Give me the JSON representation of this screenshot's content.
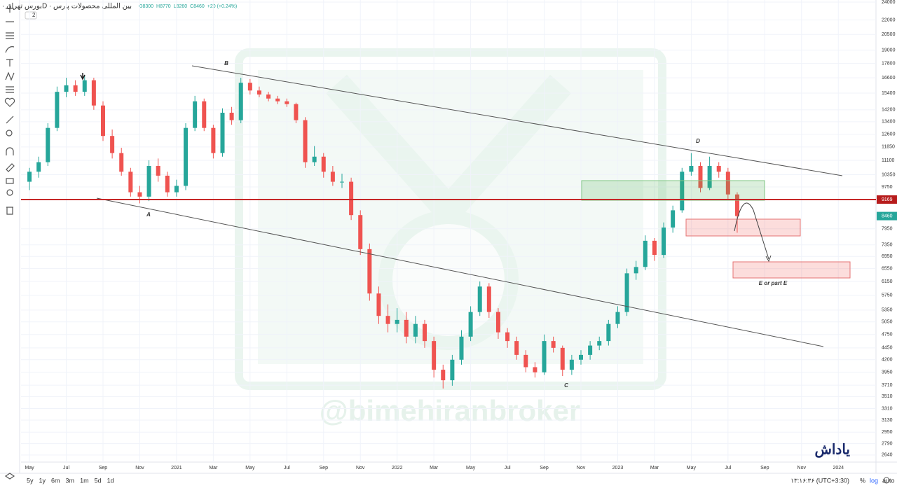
{
  "chart_data": {
    "type": "candlestick",
    "title": "بورس تهران · 1D · بین المللی محصولات پارس",
    "ohlc_texts": [
      "O8300",
      "H8770",
      "L8260",
      "C8460",
      "+20 (+0.24%)"
    ],
    "interval_badge": "2",
    "log_scale": true,
    "up_color": "#26a69a",
    "down_color": "#ef5350",
    "ylim": [
      2550,
      24250
    ],
    "yticks": [
      24000,
      22000,
      20500,
      19000,
      17800,
      16600,
      15400,
      14200,
      13400,
      12600,
      11850,
      11100,
      10350,
      9750,
      7950,
      7350,
      6950,
      6550,
      6150,
      5750,
      5350,
      5050,
      4750,
      4450,
      4200,
      3950,
      3710,
      3510,
      3310,
      3130,
      2950,
      2790,
      2640
    ],
    "xlim": [
      3.54,
      50.05
    ],
    "xticks": [
      {
        "value": 4,
        "label": "May"
      },
      {
        "value": 6,
        "label": "Jul"
      },
      {
        "value": 8,
        "label": "Sep"
      },
      {
        "value": 10,
        "label": "Nov"
      },
      {
        "value": 12,
        "label": "2021"
      },
      {
        "value": 14,
        "label": "Mar"
      },
      {
        "value": 16,
        "label": "May"
      },
      {
        "value": 18,
        "label": "Jul"
      },
      {
        "value": 20,
        "label": "Sep"
      },
      {
        "value": 22,
        "label": "Nov"
      },
      {
        "value": 24,
        "label": "2022"
      },
      {
        "value": 26,
        "label": "Mar"
      },
      {
        "value": 28,
        "label": "May"
      },
      {
        "value": 30,
        "label": "Jul"
      },
      {
        "value": 32,
        "label": "Sep"
      },
      {
        "value": 34,
        "label": "Nov"
      },
      {
        "value": 36,
        "label": "2023"
      },
      {
        "value": 38,
        "label": "Mar"
      },
      {
        "value": 40,
        "label": "May"
      },
      {
        "value": 42,
        "label": "Jul"
      },
      {
        "value": 44,
        "label": "Sep"
      },
      {
        "value": 46,
        "label": "Nov"
      },
      {
        "value": 48,
        "label": "2024"
      }
    ],
    "candles": [
      [
        4,
        10000,
        10700,
        9600,
        10500
      ],
      [
        4.5,
        10500,
        11300,
        10200,
        11000
      ],
      [
        5,
        11000,
        13300,
        10800,
        13000
      ],
      [
        5.5,
        13000,
        15900,
        12800,
        15500
      ],
      [
        6,
        15500,
        16600,
        15100,
        16000
      ],
      [
        6.5,
        16000,
        16400,
        15200,
        15500
      ],
      [
        7,
        15500,
        16800,
        15200,
        16400
      ],
      [
        7.5,
        16400,
        16600,
        14200,
        14500
      ],
      [
        8,
        14500,
        14800,
        12200,
        12500
      ],
      [
        8.5,
        12500,
        12900,
        11200,
        11500
      ],
      [
        9,
        11500,
        11800,
        10300,
        10500
      ],
      [
        9.5,
        10500,
        10700,
        9300,
        9500
      ],
      [
        10,
        9500,
        9800,
        9000,
        9300
      ],
      [
        10.5,
        9300,
        11100,
        9100,
        10800
      ],
      [
        11,
        10800,
        11200,
        10000,
        10300
      ],
      [
        11.5,
        10300,
        10500,
        9300,
        9500
      ],
      [
        12,
        9500,
        10100,
        9300,
        9800
      ],
      [
        12.5,
        9800,
        13300,
        9600,
        13000
      ],
      [
        13,
        13000,
        15200,
        12800,
        14800
      ],
      [
        13.5,
        14800,
        15000,
        12800,
        13000
      ],
      [
        14,
        13000,
        13200,
        11200,
        11500
      ],
      [
        14.5,
        11500,
        14300,
        11300,
        14000
      ],
      [
        15,
        14000,
        14400,
        13200,
        13500
      ],
      [
        15.5,
        13500,
        16600,
        13300,
        16200
      ],
      [
        16,
        16200,
        16500,
        15300,
        15600
      ],
      [
        16.5,
        15600,
        15900,
        15100,
        15300
      ],
      [
        17,
        15300,
        15500,
        14800,
        15000
      ],
      [
        17.5,
        15000,
        15200,
        14600,
        14800
      ],
      [
        18,
        14800,
        15000,
        14400,
        14600
      ],
      [
        18.5,
        14600,
        14700,
        13300,
        13500
      ],
      [
        19,
        13500,
        13700,
        10700,
        11000
      ],
      [
        19.5,
        11000,
        11900,
        10800,
        11300
      ],
      [
        20,
        11300,
        11500,
        10200,
        10500
      ],
      [
        20.5,
        10500,
        10800,
        9800,
        10000
      ],
      [
        21,
        10000,
        10400,
        9700,
        10000
      ],
      [
        21.5,
        10000,
        10200,
        8300,
        8500
      ],
      [
        22,
        8500,
        8700,
        7000,
        7200
      ],
      [
        22.5,
        7200,
        7400,
        5600,
        5800
      ],
      [
        23,
        5800,
        6000,
        5000,
        5200
      ],
      [
        23.5,
        5200,
        5500,
        4800,
        5000
      ],
      [
        24,
        5000,
        5400,
        4800,
        5100
      ],
      [
        24.5,
        5100,
        5300,
        4550,
        4700
      ],
      [
        25,
        4700,
        5200,
        4550,
        5000
      ],
      [
        25.5,
        5000,
        5100,
        4450,
        4600
      ],
      [
        26,
        4600,
        4700,
        3850,
        4000
      ],
      [
        26.5,
        4000,
        4100,
        3650,
        3800
      ],
      [
        27,
        3800,
        4300,
        3700,
        4200
      ],
      [
        27.5,
        4200,
        4850,
        4100,
        4700
      ],
      [
        28,
        4700,
        5450,
        4600,
        5300
      ],
      [
        28.5,
        5300,
        6150,
        5200,
        6000
      ],
      [
        29,
        6000,
        6100,
        5150,
        5300
      ],
      [
        29.5,
        5300,
        5400,
        4650,
        4800
      ],
      [
        30,
        4800,
        4900,
        4450,
        4600
      ],
      [
        30.5,
        4600,
        4700,
        4200,
        4300
      ],
      [
        31,
        4300,
        4400,
        3950,
        4050
      ],
      [
        31.5,
        4050,
        4150,
        3850,
        3950
      ],
      [
        32,
        3950,
        4750,
        3900,
        4600
      ],
      [
        32.5,
        4600,
        4700,
        4350,
        4450
      ],
      [
        33,
        4450,
        4500,
        3880,
        4000
      ],
      [
        33.5,
        4000,
        4300,
        3900,
        4200
      ],
      [
        34,
        4200,
        4400,
        4100,
        4300
      ],
      [
        34.5,
        4300,
        4600,
        4200,
        4500
      ],
      [
        35,
        4500,
        4700,
        4400,
        4600
      ],
      [
        35.5,
        4600,
        5100,
        4500,
        5000
      ],
      [
        36,
        5000,
        5450,
        4900,
        5300
      ],
      [
        36.5,
        5300,
        6550,
        5200,
        6400
      ],
      [
        37,
        6400,
        6800,
        6200,
        6600
      ],
      [
        37.5,
        6600,
        7700,
        6500,
        7500
      ],
      [
        38,
        7500,
        7600,
        6800,
        7000
      ],
      [
        38.5,
        7000,
        8200,
        6900,
        8000
      ],
      [
        39,
        8000,
        8900,
        7800,
        8700
      ],
      [
        39.5,
        8700,
        10700,
        8600,
        10500
      ],
      [
        40,
        10500,
        11500,
        10300,
        10800
      ],
      [
        40.5,
        10800,
        11000,
        9500,
        9700
      ],
      [
        41,
        9700,
        11300,
        9600,
        10800
      ],
      [
        41.5,
        10800,
        11000,
        10200,
        10500
      ],
      [
        42,
        10500,
        10700,
        9200,
        9400
      ],
      [
        42.5,
        9400,
        9500,
        7800,
        8460
      ]
    ],
    "price_line": 9169,
    "last_price": 8460,
    "wave_labels": [
      "A",
      "B",
      "C",
      "D",
      "E or part E"
    ],
    "watermark": "@bimehiranbroker",
    "logo": "یاداش",
    "ranges": [
      "5y",
      "1y",
      "6m",
      "3m",
      "1m",
      "5d",
      "1d"
    ],
    "clock": "۱۳:۱۶:۳۶ (UTC+3:30)",
    "axis_buttons": [
      "%",
      "log",
      "auto"
    ]
  }
}
